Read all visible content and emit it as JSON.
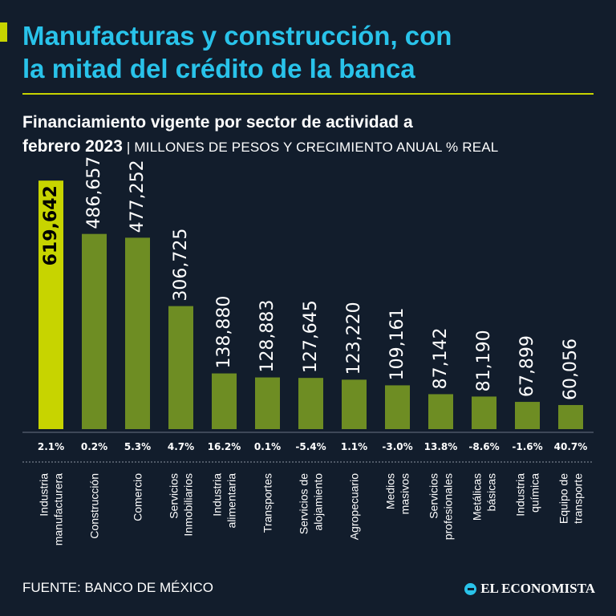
{
  "header": {
    "title_line1": "Manufacturas y construcción, con",
    "title_line2": "la mitad del crédito de la banca",
    "subtitle_bold_1": "Financiamiento vigente por sector de actividad a",
    "subtitle_bold_2": "febrero 2023",
    "subtitle_units": " | MILLONES DE PESOS Y CRECIMIENTO ANUAL % REAL"
  },
  "colors": {
    "highlight_bar": "#c7d400",
    "bar": "#6e8d23",
    "title": "#29c3ea",
    "background": "#121d2c"
  },
  "chart_data": {
    "type": "bar",
    "title": "Financiamiento vigente por sector de actividad a febrero 2023",
    "ylabel": "Millones de pesos",
    "ylim": [
      0,
      620000
    ],
    "categories": [
      [
        "Industria",
        "manufacturera"
      ],
      [
        "Construcción"
      ],
      [
        "Comercio"
      ],
      [
        "Servicios",
        "Inmobiliarios"
      ],
      [
        "Industria",
        "alimentaria"
      ],
      [
        "Transportes"
      ],
      [
        "Servicios de",
        "alojamiento"
      ],
      [
        "Agropecuario"
      ],
      [
        "Medios",
        "masivos"
      ],
      [
        "Servicios",
        "profesionales"
      ],
      [
        "Metálicas",
        "básicas"
      ],
      [
        "Industria",
        "química"
      ],
      [
        "Equipo de",
        "transporte"
      ]
    ],
    "values": [
      619642,
      486657,
      477252,
      306725,
      138880,
      128883,
      127645,
      123220,
      109161,
      87142,
      81190,
      67899,
      60056
    ],
    "value_labels": [
      "619,642",
      "486,657",
      "477,252",
      "306,725",
      "138,880",
      "128,883",
      "127,645",
      "123,220",
      "109,161",
      "87,142",
      "81,190",
      "67,899",
      "60,056"
    ],
    "growth": [
      "2.1%",
      "0.2%",
      "5.3%",
      "4.7%",
      "16.2%",
      "0.1%",
      "-5.4%",
      "1.1%",
      "-3.0%",
      "13.8%",
      "-8.6%",
      "-1.6%",
      "40.7%"
    ],
    "highlight_index": 0
  },
  "footer": {
    "source": "FUENTE: BANCO DE MÉXICO",
    "brand": "EL ECONOMISTA"
  }
}
